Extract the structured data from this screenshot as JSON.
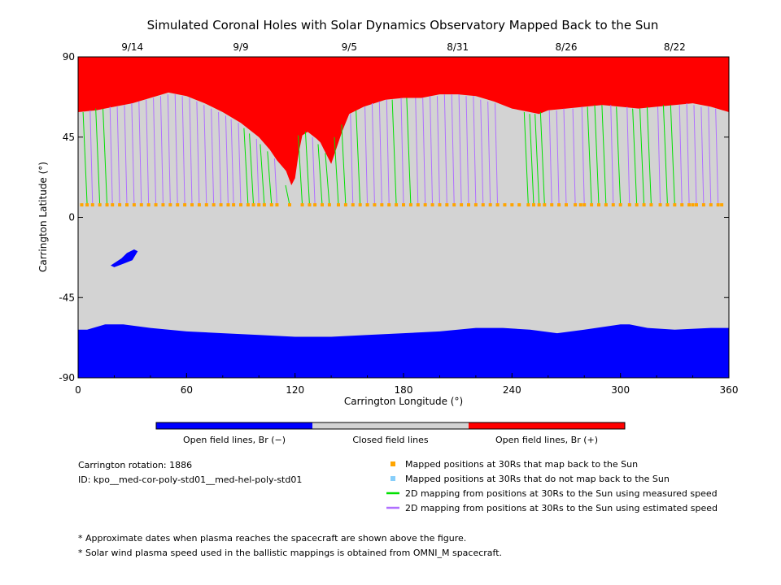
{
  "chart_data": {
    "type": "map",
    "title": "Simulated Coronal Holes with Solar Dynamics Observatory Mapped Back to the Sun",
    "xlabel": "Carrington Longitude (°)",
    "ylabel": "Carrington Latitude (°)",
    "xlim": [
      0,
      360
    ],
    "ylim": [
      -90,
      90
    ],
    "x_ticks": [
      0,
      60,
      120,
      180,
      240,
      300,
      360
    ],
    "y_ticks": [
      -90,
      -45,
      0,
      45,
      90
    ],
    "top_axis": {
      "dates": [
        {
          "label": "9/14",
          "lon": 30
        },
        {
          "label": "9/9",
          "lon": 90
        },
        {
          "label": "9/5",
          "lon": 150
        },
        {
          "label": "8/31",
          "lon": 210
        },
        {
          "label": "8/26",
          "lon": 270
        },
        {
          "label": "8/22",
          "lon": 330
        }
      ]
    },
    "regions": {
      "north_boundary": [
        [
          0,
          59
        ],
        [
          10,
          60
        ],
        [
          20,
          62
        ],
        [
          30,
          64
        ],
        [
          40,
          67
        ],
        [
          50,
          70
        ],
        [
          60,
          68
        ],
        [
          70,
          64
        ],
        [
          80,
          59
        ],
        [
          90,
          53
        ],
        [
          100,
          45
        ],
        [
          106,
          38
        ],
        [
          110,
          32
        ],
        [
          115,
          26
        ],
        [
          118,
          18
        ],
        [
          120,
          22
        ],
        [
          122,
          36
        ],
        [
          124,
          46
        ],
        [
          127,
          48
        ],
        [
          132,
          44
        ],
        [
          134,
          42
        ],
        [
          136,
          38
        ],
        [
          140,
          30
        ],
        [
          146,
          48
        ],
        [
          150,
          58
        ],
        [
          158,
          62
        ],
        [
          170,
          66
        ],
        [
          180,
          67
        ],
        [
          190,
          67
        ],
        [
          200,
          69
        ],
        [
          210,
          69
        ],
        [
          220,
          68
        ],
        [
          230,
          65
        ],
        [
          240,
          61
        ],
        [
          250,
          59
        ],
        [
          255,
          58
        ],
        [
          260,
          60
        ],
        [
          270,
          61
        ],
        [
          280,
          62
        ],
        [
          290,
          63
        ],
        [
          300,
          62
        ],
        [
          310,
          61
        ],
        [
          320,
          62
        ],
        [
          330,
          63
        ],
        [
          340,
          64
        ],
        [
          350,
          62
        ],
        [
          360,
          59
        ]
      ],
      "south_boundary": [
        [
          0,
          -63
        ],
        [
          5,
          -63
        ],
        [
          15,
          -60
        ],
        [
          25,
          -60
        ],
        [
          40,
          -62
        ],
        [
          60,
          -64
        ],
        [
          80,
          -65
        ],
        [
          100,
          -66
        ],
        [
          120,
          -67
        ],
        [
          140,
          -67
        ],
        [
          160,
          -66
        ],
        [
          180,
          -65
        ],
        [
          200,
          -64
        ],
        [
          220,
          -62
        ],
        [
          235,
          -62
        ],
        [
          250,
          -63
        ],
        [
          265,
          -65
        ],
        [
          280,
          -63
        ],
        [
          300,
          -60
        ],
        [
          305,
          -60
        ],
        [
          315,
          -62
        ],
        [
          330,
          -63
        ],
        [
          350,
          -62
        ],
        [
          360,
          -62
        ]
      ],
      "south_patch": [
        [
          20,
          -28
        ],
        [
          25,
          -26
        ],
        [
          30,
          -24
        ],
        [
          33,
          -19
        ],
        [
          31,
          -18
        ],
        [
          27,
          -20
        ],
        [
          24,
          -23
        ],
        [
          18,
          -27
        ]
      ]
    },
    "colorbar": [
      {
        "label": "Open field lines, Br (−)",
        "color": "#0000ff"
      },
      {
        "label": "Closed field lines",
        "color": "#d3d3d3"
      },
      {
        "label": "Open field lines, Br (+)",
        "color": "#ff0000"
      }
    ],
    "footpoint_lat": 7,
    "mappings": [
      {
        "lon": 5,
        "lat": 59,
        "speed": "measured"
      },
      {
        "lon": 8,
        "lat": 60,
        "speed": "estimated"
      },
      {
        "lon": 12,
        "lat": 61,
        "speed": "measured"
      },
      {
        "lon": 16,
        "lat": 61,
        "speed": "measured"
      },
      {
        "lon": 19,
        "lat": 62,
        "speed": "estimated"
      },
      {
        "lon": 23,
        "lat": 62,
        "speed": "estimated"
      },
      {
        "lon": 27,
        "lat": 63,
        "speed": "estimated"
      },
      {
        "lon": 31,
        "lat": 64,
        "speed": "estimated"
      },
      {
        "lon": 35,
        "lat": 65,
        "speed": "estimated"
      },
      {
        "lon": 39,
        "lat": 66,
        "speed": "estimated"
      },
      {
        "lon": 43,
        "lat": 67,
        "speed": "estimated"
      },
      {
        "lon": 47,
        "lat": 68,
        "speed": "estimated"
      },
      {
        "lon": 51,
        "lat": 69,
        "speed": "estimated"
      },
      {
        "lon": 55,
        "lat": 69,
        "speed": "estimated"
      },
      {
        "lon": 59,
        "lat": 68,
        "speed": "estimated"
      },
      {
        "lon": 63,
        "lat": 67,
        "speed": "estimated"
      },
      {
        "lon": 67,
        "lat": 65,
        "speed": "estimated"
      },
      {
        "lon": 71,
        "lat": 63,
        "speed": "estimated"
      },
      {
        "lon": 75,
        "lat": 61,
        "speed": "estimated"
      },
      {
        "lon": 79,
        "lat": 59,
        "speed": "estimated"
      },
      {
        "lon": 83,
        "lat": 57,
        "speed": "estimated"
      },
      {
        "lon": 86,
        "lat": 55,
        "speed": "estimated"
      },
      {
        "lon": 90,
        "lat": 53,
        "speed": "estimated"
      },
      {
        "lon": 94,
        "lat": 50,
        "speed": "measured"
      },
      {
        "lon": 97,
        "lat": 47,
        "speed": "measured"
      },
      {
        "lon": 100,
        "lat": 44,
        "speed": "estimated"
      },
      {
        "lon": 103,
        "lat": 41,
        "speed": "measured"
      },
      {
        "lon": 107,
        "lat": 37,
        "speed": "measured"
      },
      {
        "lon": 110,
        "lat": 33,
        "speed": "estimated"
      },
      {
        "lon": 117,
        "lat": 18,
        "speed": "measured"
      },
      {
        "lon": 124,
        "lat": 46,
        "speed": "measured"
      },
      {
        "lon": 128,
        "lat": 48,
        "speed": "measured"
      },
      {
        "lon": 131,
        "lat": 45,
        "speed": "estimated"
      },
      {
        "lon": 135,
        "lat": 41,
        "speed": "measured"
      },
      {
        "lon": 139,
        "lat": 36,
        "speed": "measured"
      },
      {
        "lon": 144,
        "lat": 45,
        "speed": "measured"
      },
      {
        "lon": 148,
        "lat": 52,
        "speed": "measured"
      },
      {
        "lon": 152,
        "lat": 58,
        "speed": "estimated"
      },
      {
        "lon": 156,
        "lat": 60,
        "speed": "measured"
      },
      {
        "lon": 160,
        "lat": 62,
        "speed": "estimated"
      },
      {
        "lon": 164,
        "lat": 64,
        "speed": "estimated"
      },
      {
        "lon": 168,
        "lat": 65,
        "speed": "estimated"
      },
      {
        "lon": 172,
        "lat": 66,
        "speed": "estimated"
      },
      {
        "lon": 176,
        "lat": 66,
        "speed": "measured"
      },
      {
        "lon": 180,
        "lat": 67,
        "speed": "estimated"
      },
      {
        "lon": 184,
        "lat": 67,
        "speed": "measured"
      },
      {
        "lon": 188,
        "lat": 67,
        "speed": "estimated"
      },
      {
        "lon": 192,
        "lat": 67,
        "speed": "estimated"
      },
      {
        "lon": 196,
        "lat": 68,
        "speed": "estimated"
      },
      {
        "lon": 200,
        "lat": 68,
        "speed": "estimated"
      },
      {
        "lon": 204,
        "lat": 69,
        "speed": "estimated"
      },
      {
        "lon": 208,
        "lat": 69,
        "speed": "estimated"
      },
      {
        "lon": 212,
        "lat": 69,
        "speed": "estimated"
      },
      {
        "lon": 216,
        "lat": 68,
        "speed": "estimated"
      },
      {
        "lon": 220,
        "lat": 68,
        "speed": "estimated"
      },
      {
        "lon": 224,
        "lat": 66,
        "speed": "estimated"
      },
      {
        "lon": 228,
        "lat": 65,
        "speed": "estimated"
      },
      {
        "lon": 232,
        "lat": 64,
        "speed": "estimated"
      },
      {
        "lon": 249,
        "lat": 59,
        "speed": "measured"
      },
      {
        "lon": 252,
        "lat": 58,
        "speed": "measured"
      },
      {
        "lon": 255,
        "lat": 58,
        "speed": "measured"
      },
      {
        "lon": 258,
        "lat": 59,
        "speed": "measured"
      },
      {
        "lon": 262,
        "lat": 60,
        "speed": "estimated"
      },
      {
        "lon": 266,
        "lat": 60,
        "speed": "estimated"
      },
      {
        "lon": 270,
        "lat": 61,
        "speed": "estimated"
      },
      {
        "lon": 275,
        "lat": 61,
        "speed": "estimated"
      },
      {
        "lon": 280,
        "lat": 62,
        "speed": "estimated"
      },
      {
        "lon": 284,
        "lat": 62,
        "speed": "measured"
      },
      {
        "lon": 288,
        "lat": 63,
        "speed": "measured"
      },
      {
        "lon": 292,
        "lat": 63,
        "speed": "measured"
      },
      {
        "lon": 296,
        "lat": 63,
        "speed": "estimated"
      },
      {
        "lon": 300,
        "lat": 62,
        "speed": "measured"
      },
      {
        "lon": 305,
        "lat": 62,
        "speed": "estimated"
      },
      {
        "lon": 309,
        "lat": 61,
        "speed": "measured"
      },
      {
        "lon": 313,
        "lat": 61,
        "speed": "measured"
      },
      {
        "lon": 317,
        "lat": 62,
        "speed": "measured"
      },
      {
        "lon": 322,
        "lat": 62,
        "speed": "estimated"
      },
      {
        "lon": 326,
        "lat": 63,
        "speed": "measured"
      },
      {
        "lon": 330,
        "lat": 63,
        "speed": "measured"
      },
      {
        "lon": 334,
        "lat": 63,
        "speed": "estimated"
      },
      {
        "lon": 338,
        "lat": 64,
        "speed": "estimated"
      },
      {
        "lon": 342,
        "lat": 63,
        "speed": "estimated"
      },
      {
        "lon": 346,
        "lat": 62,
        "speed": "estimated"
      },
      {
        "lon": 350,
        "lat": 62,
        "speed": "estimated"
      },
      {
        "lon": 354,
        "lat": 61,
        "speed": "estimated"
      }
    ],
    "unmapped_footpoints": [
      2,
      236,
      240,
      244,
      278,
      340,
      356
    ],
    "series": [
      {
        "name": "Mapped positions at 30Rs that map back to the Sun",
        "color": "#ffa500"
      },
      {
        "name": "Mapped positions at 30Rs that do not map back to the Sun",
        "color": "#87cefa"
      },
      {
        "name": "2D mapping from positions at 30Rs to the Sun using measured speed",
        "color": "#00e000"
      },
      {
        "name": "2D mapping from positions at 30Rs to the Sun using estimated speed",
        "color": "#b070ff"
      }
    ],
    "info": {
      "rotation": "Carrington rotation: 1886",
      "id": "ID: kpo__med-cor-poly-std01__med-hel-poly-std01"
    },
    "notes": [
      "* Approximate dates when plasma reaches the spacecraft are shown above the figure.",
      "* Solar wind plasma speed used in the ballistic mappings is obtained from OMNI_M spacecraft."
    ],
    "colors": {
      "red": "#ff0000",
      "gray": "#d3d3d3",
      "blue": "#0000ff",
      "orange": "#ffa500",
      "green": "#00e000",
      "purple": "#b070ff"
    }
  }
}
